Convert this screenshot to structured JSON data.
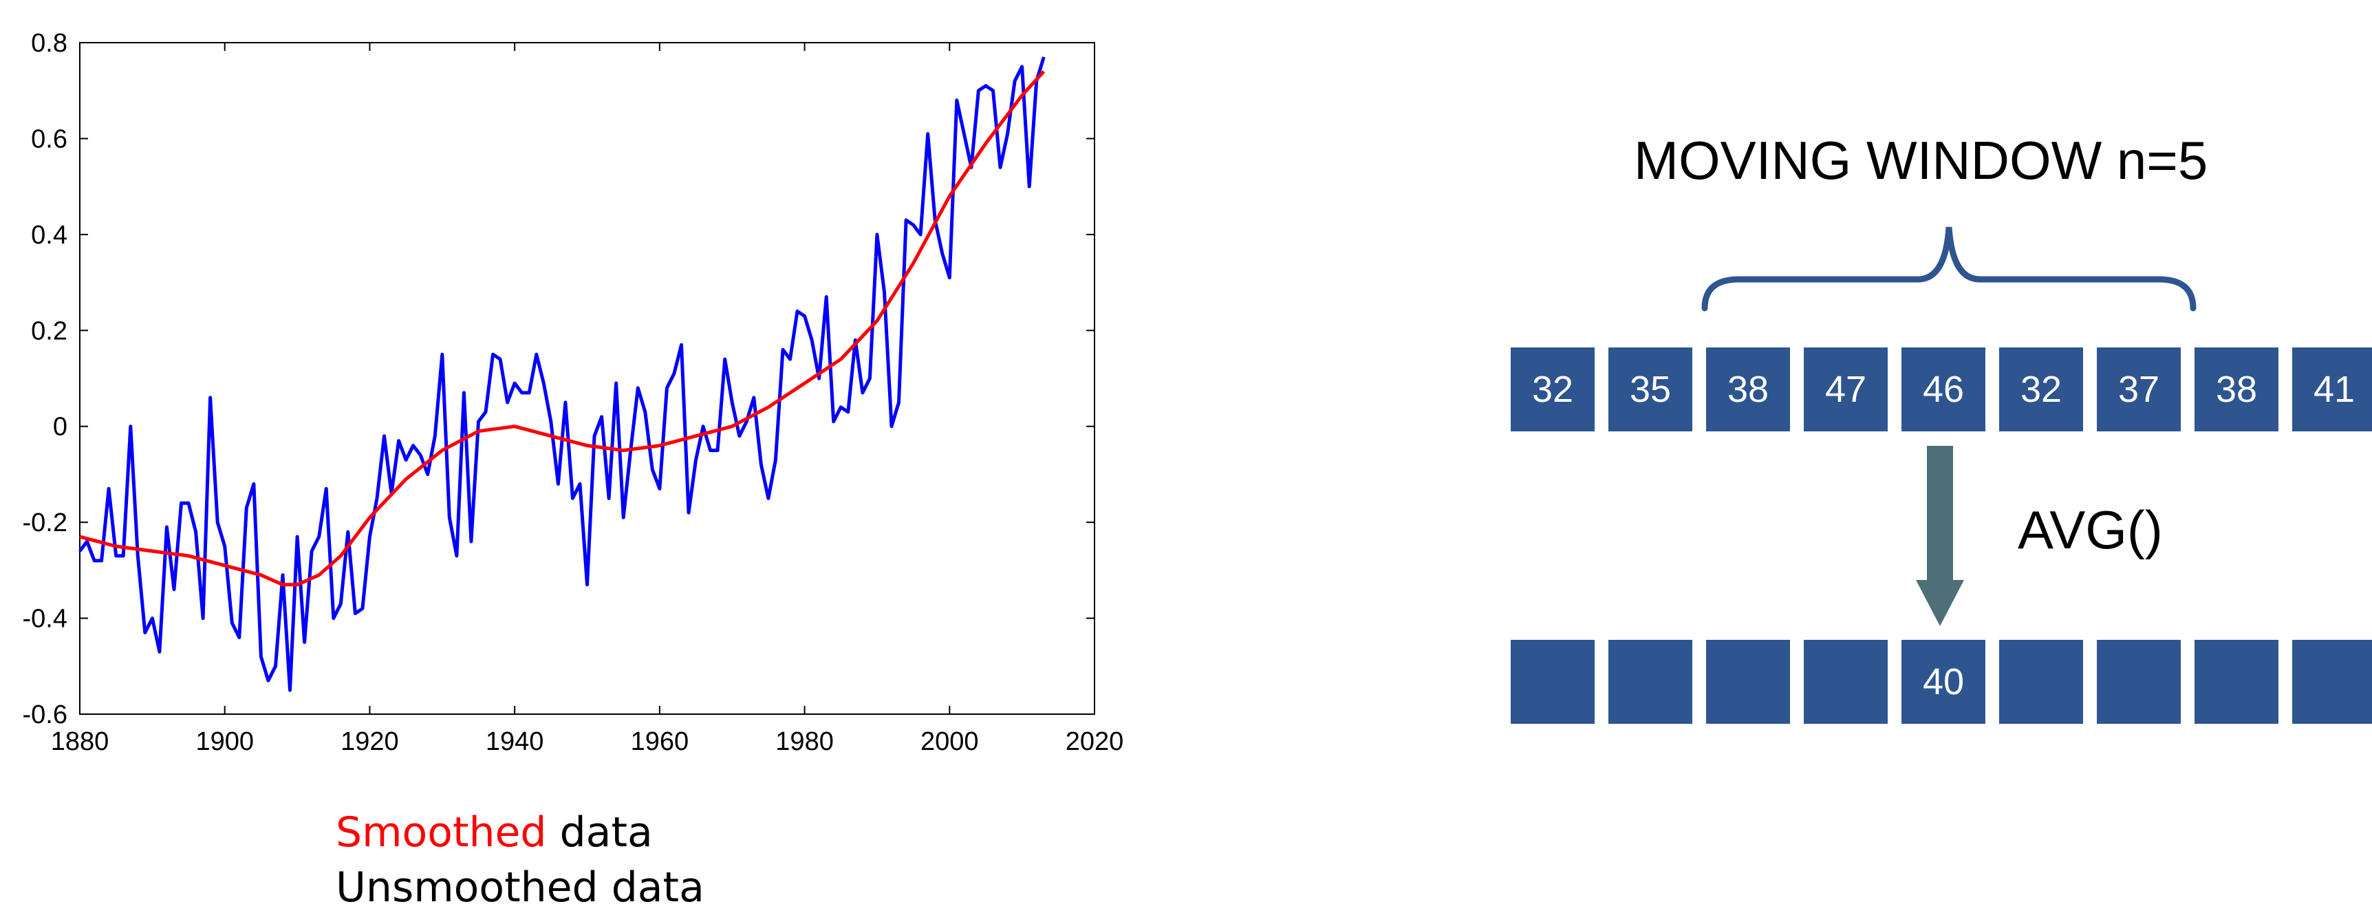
{
  "chart_data": {
    "type": "line",
    "xlim": [
      1880,
      2020
    ],
    "ylim": [
      -0.6,
      0.8
    ],
    "xticks": [
      "1880",
      "1900",
      "1920",
      "1940",
      "1960",
      "1980",
      "2000",
      "2020"
    ],
    "yticks": [
      "0.8",
      "0.6",
      "0.4",
      "0.2",
      "0",
      "-0.2",
      "-0.4",
      "-0.6"
    ],
    "grid": false,
    "series": [
      {
        "color": "#0000ff",
        "x": [
          1880,
          1881,
          1882,
          1883,
          1884,
          1885,
          1886,
          1887,
          1888,
          1889,
          1890,
          1891,
          1892,
          1893,
          1894,
          1895,
          1896,
          1897,
          1898,
          1899,
          1900,
          1901,
          1902,
          1903,
          1904,
          1905,
          1906,
          1907,
          1908,
          1909,
          1910,
          1911,
          1912,
          1913,
          1914,
          1915,
          1916,
          1917,
          1918,
          1919,
          1920,
          1921,
          1922,
          1923,
          1924,
          1925,
          1926,
          1927,
          1928,
          1929,
          1930,
          1931,
          1932,
          1933,
          1934,
          1935,
          1936,
          1937,
          1938,
          1939,
          1940,
          1941,
          1942,
          1943,
          1944,
          1945,
          1946,
          1947,
          1948,
          1949,
          1950,
          1951,
          1952,
          1953,
          1954,
          1955,
          1956,
          1957,
          1958,
          1959,
          1960,
          1961,
          1962,
          1963,
          1964,
          1965,
          1966,
          1967,
          1968,
          1969,
          1970,
          1971,
          1972,
          1973,
          1974,
          1975,
          1976,
          1977,
          1978,
          1979,
          1980,
          1981,
          1982,
          1983,
          1984,
          1985,
          1986,
          1987,
          1988,
          1989,
          1990,
          1991,
          1992,
          1993,
          1994,
          1995,
          1996,
          1997,
          1998,
          1999,
          2000,
          2001,
          2002,
          2003,
          2004,
          2005,
          2006,
          2007,
          2008,
          2009,
          2010,
          2011,
          2012,
          2013
        ],
        "y": [
          -0.26,
          -0.24,
          -0.28,
          -0.28,
          -0.13,
          -0.27,
          -0.27,
          0.0,
          -0.27,
          -0.43,
          -0.4,
          -0.47,
          -0.21,
          -0.34,
          -0.16,
          -0.16,
          -0.22,
          -0.4,
          0.06,
          -0.2,
          -0.25,
          -0.41,
          -0.44,
          -0.17,
          -0.12,
          -0.48,
          -0.53,
          -0.5,
          -0.31,
          -0.55,
          -0.23,
          -0.45,
          -0.26,
          -0.23,
          -0.13,
          -0.4,
          -0.37,
          -0.22,
          -0.39,
          -0.38,
          -0.23,
          -0.15,
          -0.02,
          -0.14,
          -0.03,
          -0.07,
          -0.04,
          -0.06,
          -0.1,
          -0.02,
          0.15,
          -0.19,
          -0.27,
          0.07,
          -0.24,
          0.01,
          0.03,
          0.15,
          0.14,
          0.05,
          0.09,
          0.07,
          0.07,
          0.15,
          0.09,
          0.01,
          -0.12,
          0.05,
          -0.15,
          -0.12,
          -0.33,
          -0.02,
          0.02,
          -0.15,
          0.09,
          -0.19,
          -0.05,
          0.08,
          0.03,
          -0.09,
          -0.13,
          0.08,
          0.11,
          0.17,
          -0.18,
          -0.07,
          0.0,
          -0.05,
          -0.05,
          0.14,
          0.05,
          -0.02,
          0.01,
          0.06,
          -0.08,
          -0.15,
          -0.07,
          0.16,
          0.14,
          0.24,
          0.23,
          0.18,
          0.1,
          0.27,
          0.01,
          0.04,
          0.03,
          0.18,
          0.07,
          0.1,
          0.4,
          0.28,
          0.0,
          0.05,
          0.43,
          0.42,
          0.4,
          0.61,
          0.43,
          0.36,
          0.31,
          0.68,
          0.61,
          0.54,
          0.7,
          0.71,
          0.7,
          0.54,
          0.61,
          0.72,
          0.75,
          0.5,
          0.72,
          0.77
        ]
      },
      {
        "color": "#ff0000",
        "x": [
          1880,
          1885,
          1890,
          1895,
          1900,
          1905,
          1908,
          1910,
          1913,
          1916,
          1920,
          1925,
          1930,
          1935,
          1940,
          1945,
          1950,
          1955,
          1960,
          1965,
          1970,
          1975,
          1980,
          1985,
          1990,
          1995,
          2000,
          2005,
          2010,
          2013
        ],
        "y": [
          -0.23,
          -0.25,
          -0.26,
          -0.27,
          -0.29,
          -0.31,
          -0.33,
          -0.33,
          -0.31,
          -0.27,
          -0.19,
          -0.11,
          -0.05,
          -0.01,
          0.0,
          -0.02,
          -0.04,
          -0.05,
          -0.04,
          -0.02,
          0.0,
          0.04,
          0.09,
          0.14,
          0.22,
          0.34,
          0.48,
          0.59,
          0.69,
          0.74
        ]
      }
    ]
  },
  "legend": {
    "smoothed_word": "Smoothed",
    "smoothed_rest": " data",
    "unsmoothed": "Unsmoothed data"
  },
  "diagram": {
    "title": "MOVING WINDOW n=5",
    "input_values": [
      "32",
      "35",
      "38",
      "47",
      "46",
      "32",
      "37",
      "38",
      "41"
    ],
    "function_label": "AVG()",
    "output_values": [
      "",
      "",
      "",
      "",
      "40",
      "",
      "",
      "",
      ""
    ],
    "cell_color": "#2e5590",
    "brace_color": "#2e5590",
    "arrow_color": "#4f6f78"
  }
}
